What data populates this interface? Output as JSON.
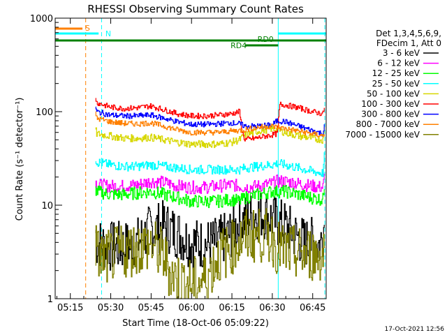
{
  "chart_data": {
    "type": "line",
    "title": "RHESSI Observing Summary Count Rates",
    "xlabel": "Start Time (18-Oct-06 05:09:22)",
    "ylabel": "Count Rate (s⁻¹ detector⁻¹)",
    "ylog": true,
    "ylim": [
      1,
      1000
    ],
    "xlim_min": [
      309.37,
      410
    ],
    "x_ticks": [
      {
        "min": 315,
        "label": "05:15"
      },
      {
        "min": 330,
        "label": "05:30"
      },
      {
        "min": 345,
        "label": "05:45"
      },
      {
        "min": 360,
        "label": "06:00"
      },
      {
        "min": 375,
        "label": "06:15"
      },
      {
        "min": 390,
        "label": "06:30"
      },
      {
        "min": 405,
        "label": "06:45"
      }
    ],
    "y_ticks": [
      {
        "value": 1,
        "label": "1"
      },
      {
        "value": 10,
        "label": "10"
      },
      {
        "value": 100,
        "label": "100"
      },
      {
        "value": 1000,
        "label": "1000"
      }
    ],
    "legend_placement": "right",
    "legend_header": [
      "Det 1,3,4,5,6,9,",
      "FDecim 1, Att 0"
    ],
    "flags": [
      {
        "label": "S",
        "color": "#ff8000"
      },
      {
        "label": "N",
        "color": "#00ffff"
      },
      {
        "label": "RD0",
        "color": "#008000"
      },
      {
        "label": "RD4",
        "color": "#008000"
      }
    ],
    "vlines": [
      {
        "min": 309.37,
        "color": "#00ffff",
        "style": "solid"
      },
      {
        "min": 320.7,
        "color": "#ff8000",
        "style": "dashed"
      },
      {
        "min": 326.6,
        "color": "#00ffff",
        "style": "dashed"
      },
      {
        "min": 392.2,
        "color": "#00ffff",
        "style": "solid"
      },
      {
        "min": 409.5,
        "color": "#00ffff",
        "style": "dashed"
      }
    ],
    "series": [
      {
        "name": "3 - 6 keV",
        "color": "#000000",
        "points": [
          [
            324.5,
            5.5
          ],
          [
            325,
            4
          ],
          [
            330,
            3.6
          ],
          [
            335,
            3.6
          ],
          [
            340,
            4
          ],
          [
            345,
            5.5
          ],
          [
            350,
            6
          ],
          [
            355,
            5
          ],
          [
            360,
            4
          ],
          [
            365,
            3.8
          ],
          [
            370,
            4
          ],
          [
            375,
            5
          ],
          [
            378,
            6.5
          ],
          [
            380,
            7
          ],
          [
            384,
            8
          ],
          [
            388,
            8
          ],
          [
            392,
            6.5
          ],
          [
            395,
            6
          ],
          [
            398,
            5
          ],
          [
            402,
            4
          ],
          [
            405,
            4
          ],
          [
            408,
            3.8
          ],
          [
            409.8,
            7
          ]
        ]
      },
      {
        "name": "6 - 12 keV",
        "color": "#ff00ff",
        "points": [
          [
            324.5,
            18.5
          ],
          [
            325,
            16.5
          ],
          [
            330,
            16
          ],
          [
            335,
            16
          ],
          [
            340,
            16.5
          ],
          [
            345,
            18
          ],
          [
            350,
            17.5
          ],
          [
            355,
            16
          ],
          [
            360,
            15.5
          ],
          [
            365,
            15.5
          ],
          [
            370,
            16
          ],
          [
            375,
            16.5
          ],
          [
            378,
            16
          ],
          [
            380,
            15.5
          ],
          [
            385,
            16
          ],
          [
            390,
            17
          ],
          [
            392,
            18
          ],
          [
            395,
            18
          ],
          [
            400,
            17
          ],
          [
            405,
            16
          ],
          [
            409,
            15.5
          ],
          [
            409.8,
            22
          ]
        ]
      },
      {
        "name": "12 - 25 keV",
        "color": "#00ff00",
        "points": [
          [
            324.5,
            15
          ],
          [
            325,
            14
          ],
          [
            330,
            13
          ],
          [
            335,
            13
          ],
          [
            340,
            13.5
          ],
          [
            345,
            14
          ],
          [
            350,
            13
          ],
          [
            355,
            12
          ],
          [
            360,
            11
          ],
          [
            365,
            11
          ],
          [
            370,
            11
          ],
          [
            375,
            11.5
          ],
          [
            378,
            11
          ],
          [
            380,
            12
          ],
          [
            385,
            13
          ],
          [
            390,
            14
          ],
          [
            392,
            14
          ],
          [
            395,
            14
          ],
          [
            400,
            13
          ],
          [
            405,
            12
          ],
          [
            409,
            11.5
          ],
          [
            409.8,
            20
          ]
        ]
      },
      {
        "name": "25 - 50 keV",
        "color": "#00ffff",
        "points": [
          [
            324.5,
            32
          ],
          [
            325,
            29
          ],
          [
            330,
            27
          ],
          [
            335,
            26
          ],
          [
            340,
            26
          ],
          [
            345,
            27
          ],
          [
            350,
            26
          ],
          [
            355,
            25
          ],
          [
            360,
            24
          ],
          [
            365,
            24
          ],
          [
            370,
            24
          ],
          [
            375,
            24
          ],
          [
            378,
            24
          ],
          [
            380,
            25
          ],
          [
            385,
            26
          ],
          [
            390,
            27
          ],
          [
            392,
            28
          ],
          [
            395,
            27
          ],
          [
            400,
            25
          ],
          [
            405,
            23
          ],
          [
            409,
            22
          ],
          [
            409.8,
            40
          ]
        ]
      },
      {
        "name": "50 - 100 keV",
        "color": "#d7d700",
        "points": [
          [
            324.5,
            65
          ],
          [
            325,
            58
          ],
          [
            330,
            55
          ],
          [
            335,
            52
          ],
          [
            340,
            52
          ],
          [
            345,
            53
          ],
          [
            350,
            50
          ],
          [
            355,
            47
          ],
          [
            360,
            45
          ],
          [
            365,
            45
          ],
          [
            370,
            45
          ],
          [
            375,
            47
          ],
          [
            378,
            50
          ],
          [
            380,
            56
          ],
          [
            385,
            62
          ],
          [
            390,
            66
          ],
          [
            392,
            64
          ],
          [
            395,
            60
          ],
          [
            400,
            55
          ],
          [
            405,
            52
          ],
          [
            409,
            50
          ],
          [
            409.8,
            75
          ]
        ]
      },
      {
        "name": "100 - 300 keV",
        "color": "#ff0000",
        "points": [
          [
            324.5,
            145
          ],
          [
            325,
            125
          ],
          [
            330,
            112
          ],
          [
            335,
            108
          ],
          [
            340,
            110
          ],
          [
            345,
            115
          ],
          [
            350,
            105
          ],
          [
            355,
            95
          ],
          [
            360,
            90
          ],
          [
            365,
            90
          ],
          [
            370,
            92
          ],
          [
            375,
            95
          ],
          [
            378,
            100
          ],
          [
            379,
            62
          ],
          [
            380,
            50
          ],
          [
            384,
            52
          ],
          [
            388,
            55
          ],
          [
            392,
            58
          ],
          [
            393,
            120
          ],
          [
            395,
            118
          ],
          [
            400,
            110
          ],
          [
            405,
            100
          ],
          [
            409,
            95
          ],
          [
            409.8,
            120
          ]
        ]
      },
      {
        "name": "300 - 800 keV",
        "color": "#0000ff",
        "points": [
          [
            324.5,
            110
          ],
          [
            325,
            100
          ],
          [
            330,
            92
          ],
          [
            335,
            90
          ],
          [
            340,
            90
          ],
          [
            345,
            92
          ],
          [
            350,
            85
          ],
          [
            355,
            78
          ],
          [
            360,
            73
          ],
          [
            365,
            73
          ],
          [
            370,
            74
          ],
          [
            375,
            76
          ],
          [
            378,
            74
          ],
          [
            380,
            70
          ],
          [
            385,
            70
          ],
          [
            390,
            72
          ],
          [
            392,
            80
          ],
          [
            395,
            78
          ],
          [
            400,
            70
          ],
          [
            405,
            63
          ],
          [
            409,
            58
          ],
          [
            409.8,
            80
          ]
        ]
      },
      {
        "name": "800 - 7000 keV",
        "color": "#ff8000",
        "points": [
          [
            324.5,
            95
          ],
          [
            325,
            85
          ],
          [
            330,
            78
          ],
          [
            335,
            75
          ],
          [
            340,
            74
          ],
          [
            345,
            76
          ],
          [
            350,
            70
          ],
          [
            355,
            64
          ],
          [
            360,
            60
          ],
          [
            365,
            60
          ],
          [
            370,
            60
          ],
          [
            375,
            62
          ],
          [
            378,
            63
          ],
          [
            380,
            64
          ],
          [
            385,
            68
          ],
          [
            390,
            70
          ],
          [
            392,
            68
          ],
          [
            395,
            66
          ],
          [
            400,
            62
          ],
          [
            405,
            58
          ],
          [
            409,
            55
          ],
          [
            409.8,
            60
          ]
        ]
      },
      {
        "name": "7000 - 15000 keV",
        "color": "#808000",
        "points": [
          [
            324.5,
            4
          ],
          [
            325,
            3
          ],
          [
            328,
            2.7
          ],
          [
            332,
            3
          ],
          [
            335,
            3.2
          ],
          [
            340,
            3.5
          ],
          [
            345,
            3.8
          ],
          [
            348,
            3.2
          ],
          [
            350,
            2.8
          ],
          [
            352,
            2
          ],
          [
            355,
            1.6
          ],
          [
            360,
            1.4
          ],
          [
            365,
            1.6
          ],
          [
            368,
            2.2
          ],
          [
            370,
            2.8
          ],
          [
            375,
            3.5
          ],
          [
            378,
            4.2
          ],
          [
            380,
            4.6
          ],
          [
            385,
            4.8
          ],
          [
            390,
            4.5
          ],
          [
            392,
            3.5
          ],
          [
            395,
            3.2
          ],
          [
            400,
            3
          ],
          [
            405,
            3
          ],
          [
            409,
            2.8
          ],
          [
            409.8,
            5
          ]
        ]
      }
    ]
  },
  "footer": {
    "timestamp": "17-Oct-2021 12:56"
  }
}
